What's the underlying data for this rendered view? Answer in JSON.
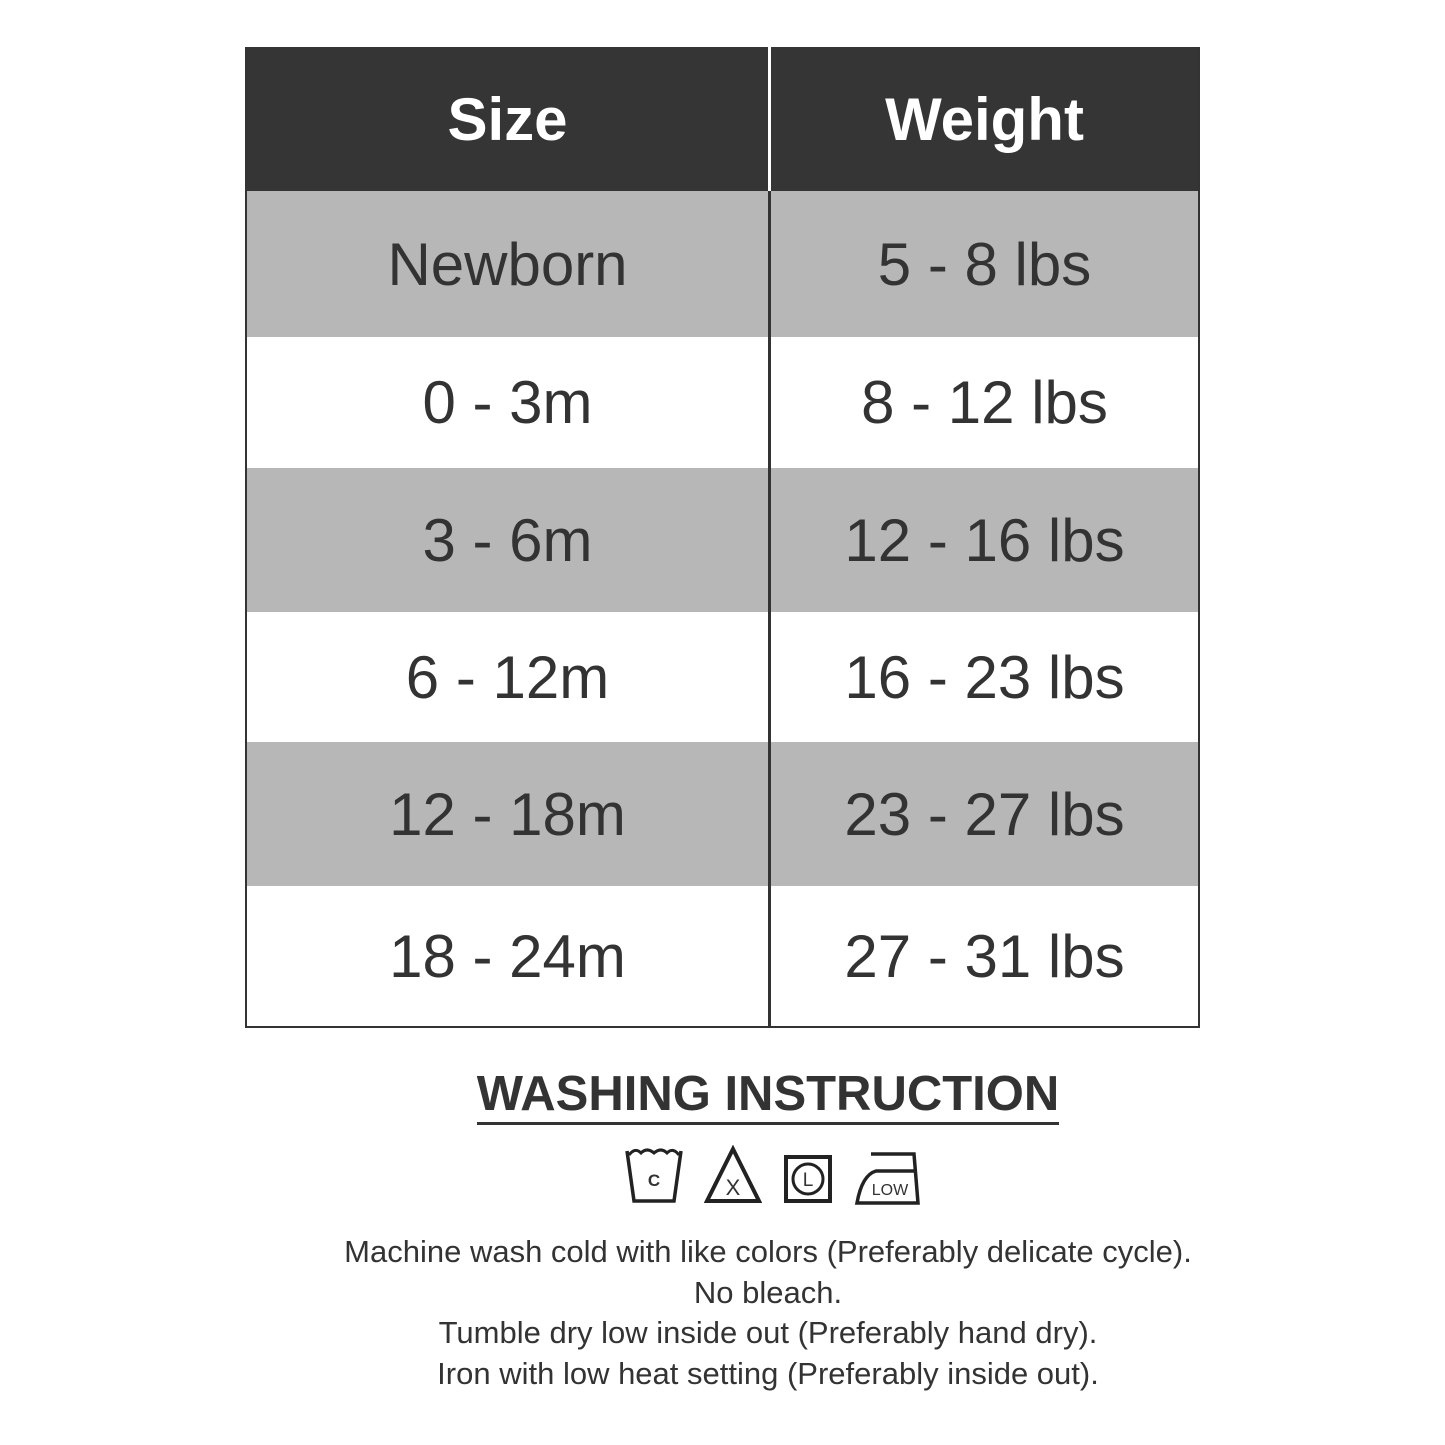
{
  "table": {
    "headers": [
      "Size",
      "Weight"
    ],
    "rows": [
      {
        "size": "Newborn",
        "weight": "5 - 8 lbs"
      },
      {
        "size": "0 - 3m",
        "weight": "8 - 12 lbs"
      },
      {
        "size": "3 - 6m",
        "weight": "12 - 16 lbs"
      },
      {
        "size": "6 - 12m",
        "weight": "16 - 23 lbs"
      },
      {
        "size": "12 - 18m",
        "weight": "23 - 27 lbs"
      },
      {
        "size": "18 - 24m",
        "weight": "27 - 31 lbs"
      }
    ]
  },
  "colors": {
    "header_bg": "#353535",
    "stripe": "#b7b7b7",
    "text": "#333333"
  },
  "washing": {
    "title": "WASHING INSTRUCTION",
    "icons": [
      {
        "name": "wash-cold-icon",
        "label": "C"
      },
      {
        "name": "no-bleach-icon",
        "label": "X"
      },
      {
        "name": "tumble-dry-low-icon",
        "label": "L"
      },
      {
        "name": "iron-low-icon",
        "label": "LOW"
      }
    ],
    "lines": [
      "Machine wash cold with like colors (Preferably delicate cycle).",
      "No bleach.",
      "Tumble dry low inside out (Preferably hand dry).",
      "Iron with low heat setting (Preferably inside out)."
    ]
  }
}
